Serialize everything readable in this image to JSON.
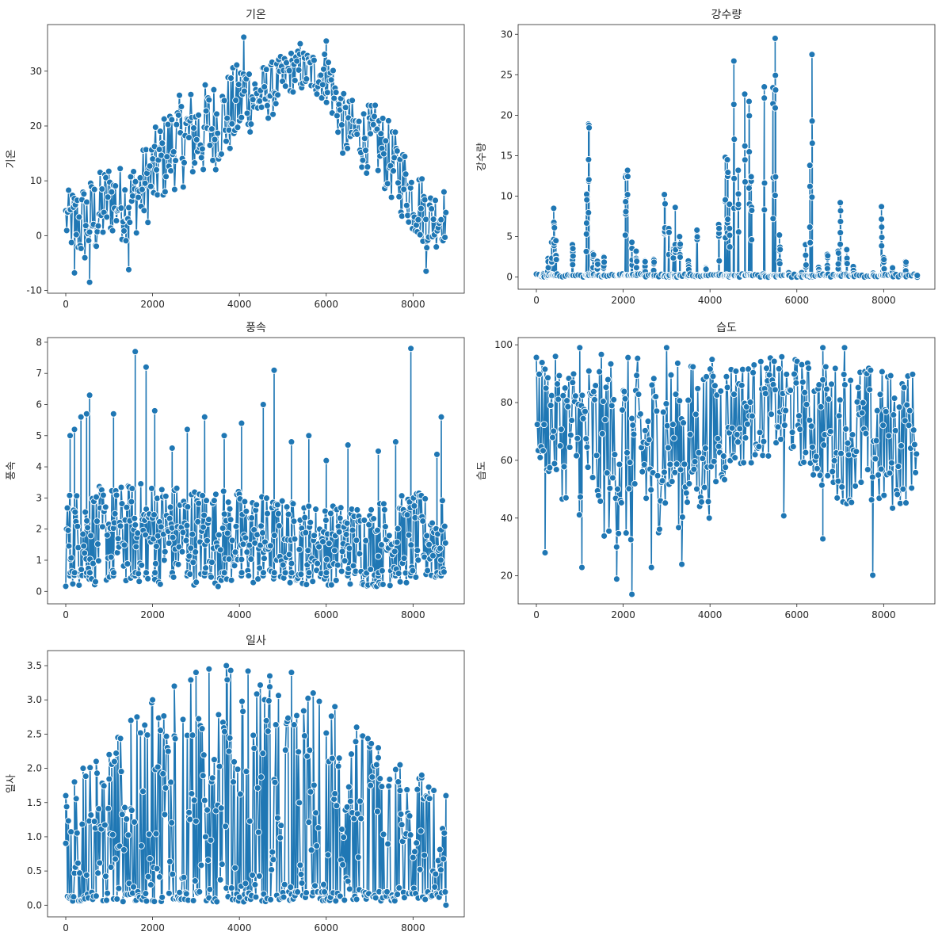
{
  "style": {
    "line_color": "#1f77b4",
    "marker_edge": "#ffffff",
    "axes_color": "#262626",
    "background": "#ffffff"
  },
  "chart_data": [
    {
      "id": "temp",
      "type": "line",
      "title": "기온",
      "xlabel": "",
      "ylabel": "기온",
      "markers": "circle",
      "xlim": [
        -420,
        9180
      ],
      "ylim": [
        -10.5,
        38.5
      ],
      "xticks": [
        0,
        2000,
        4000,
        6000,
        8000
      ],
      "yticks": [
        -10,
        0,
        10,
        20,
        30
      ],
      "ytick_labels": [
        "-10",
        "0",
        "10",
        "20",
        "30"
      ],
      "series": [
        {
          "x": [
            0,
            400,
            800,
            1000,
            1200,
            1400,
            1600,
            2000,
            2400,
            2800,
            3200,
            3600,
            4000,
            4100,
            4400,
            4800,
            5200,
            5600,
            6000,
            6100,
            6400,
            6800,
            7200,
            7600,
            8000,
            8400,
            8759
          ],
          "y": [
            3,
            2,
            4,
            7,
            6,
            6,
            7,
            11,
            16,
            18,
            19,
            21,
            24,
            26,
            25,
            27,
            30,
            30,
            29,
            28,
            20,
            18,
            17,
            12,
            7,
            3,
            4
          ],
          "range": [
            5,
            8,
            8,
            7,
            7,
            7,
            7,
            8,
            8,
            9,
            9,
            8,
            8,
            8,
            6,
            5,
            4,
            4,
            5,
            6,
            6,
            6,
            7,
            7,
            7,
            6,
            5
          ],
          "sample_extremes": [
            [
              200,
              -6.8
            ],
            [
              550,
              -8.5
            ],
            [
              1450,
              -6.2
            ],
            [
              4100,
              36.2
            ],
            [
              5400,
              35
            ],
            [
              6000,
              35.5
            ],
            [
              8300,
              -6.5
            ]
          ]
        }
      ]
    },
    {
      "id": "rain",
      "type": "line",
      "title": "강수량",
      "xlabel": "",
      "ylabel": "강수량",
      "markers": "circle",
      "xlim": [
        -420,
        9180
      ],
      "ylim": [
        -1.5,
        31.2
      ],
      "xticks": [
        0,
        2000,
        4000,
        6000,
        8000
      ],
      "yticks": [
        0,
        5,
        10,
        15,
        20,
        25,
        30
      ],
      "ytick_labels": [
        "0",
        "5",
        "10",
        "15",
        "20",
        "25",
        "30"
      ],
      "series": [
        {
          "baseline": 0,
          "events": [
            [
              150,
              0.5
            ],
            [
              260,
              2.3
            ],
            [
              350,
              4.3
            ],
            [
              400,
              8.5
            ],
            [
              450,
              4.5
            ],
            [
              830,
              4
            ],
            [
              1150,
              10.3
            ],
            [
              1200,
              18.9
            ],
            [
              1300,
              3
            ],
            [
              1400,
              2
            ],
            [
              1550,
              2.5
            ],
            [
              1900,
              0.4
            ],
            [
              2050,
              12.5
            ],
            [
              2100,
              13.2
            ],
            [
              2200,
              4.3
            ],
            [
              2300,
              3.2
            ],
            [
              2500,
              2
            ],
            [
              2700,
              2.2
            ],
            [
              2950,
              10.2
            ],
            [
              3050,
              6
            ],
            [
              3150,
              3.5
            ],
            [
              3200,
              8.6
            ],
            [
              3300,
              5
            ],
            [
              3500,
              2
            ],
            [
              3700,
              5.8
            ],
            [
              3900,
              1.2
            ],
            [
              4200,
              6.5
            ],
            [
              4350,
              14.8
            ],
            [
              4400,
              14.5
            ],
            [
              4450,
              9
            ],
            [
              4550,
              26.7
            ],
            [
              4650,
              13.2
            ],
            [
              4800,
              22.6
            ],
            [
              4900,
              21.7
            ],
            [
              4950,
              12.4
            ],
            [
              5250,
              23.5
            ],
            [
              5450,
              23.4
            ],
            [
              5500,
              29.5
            ],
            [
              5600,
              5.2
            ],
            [
              5800,
              0.6
            ],
            [
              6100,
              0.6
            ],
            [
              6200,
              4
            ],
            [
              6300,
              13.8
            ],
            [
              6350,
              27.5
            ],
            [
              6500,
              1.2
            ],
            [
              6700,
              2.8
            ],
            [
              6950,
              3.2
            ],
            [
              7000,
              9.2
            ],
            [
              7150,
              3.4
            ],
            [
              7300,
              1.3
            ],
            [
              7750,
              0.5
            ],
            [
              7950,
              8.7
            ],
            [
              8000,
              2.4
            ],
            [
              8200,
              1.2
            ],
            [
              8500,
              1.9
            ],
            [
              8759,
              0
            ]
          ]
        }
      ]
    },
    {
      "id": "wind",
      "type": "line",
      "title": "풍속",
      "xlabel": "",
      "ylabel": "풍속",
      "markers": "circle",
      "xlim": [
        -420,
        9180
      ],
      "ylim": [
        -0.4,
        8.15
      ],
      "xticks": [
        0,
        2000,
        4000,
        6000,
        8000
      ],
      "yticks": [
        0,
        1,
        2,
        3,
        4,
        5,
        6,
        7,
        8
      ],
      "ytick_labels": [
        "0",
        "1",
        "2",
        "3",
        "4",
        "5",
        "6",
        "7",
        "8"
      ],
      "series": [
        {
          "x": [
            0,
            1000,
            2000,
            3000,
            4000,
            5000,
            6000,
            7000,
            8000,
            8759
          ],
          "y": [
            1.7,
            1.8,
            1.9,
            1.8,
            1.7,
            1.6,
            1.5,
            1.5,
            1.7,
            1.6
          ],
          "range": [
            1.6,
            1.6,
            1.7,
            1.6,
            1.6,
            1.4,
            1.3,
            1.4,
            1.5,
            1.4
          ],
          "peaks": [
            [
              100,
              5
            ],
            [
              200,
              5.2
            ],
            [
              350,
              5.6
            ],
            [
              480,
              5.7
            ],
            [
              550,
              6.3
            ],
            [
              1100,
              5.7
            ],
            [
              1600,
              7.7
            ],
            [
              1850,
              7.2
            ],
            [
              2050,
              5.8
            ],
            [
              2450,
              4.6
            ],
            [
              2800,
              5.2
            ],
            [
              3200,
              5.6
            ],
            [
              3650,
              5
            ],
            [
              4050,
              5.4
            ],
            [
              4550,
              6
            ],
            [
              4800,
              7.1
            ],
            [
              5200,
              4.8
            ],
            [
              5600,
              5
            ],
            [
              6000,
              4.2
            ],
            [
              6500,
              4.7
            ],
            [
              7200,
              4.5
            ],
            [
              7600,
              4.8
            ],
            [
              7950,
              7.8
            ],
            [
              8550,
              4.4
            ],
            [
              8650,
              5.6
            ]
          ]
        }
      ]
    },
    {
      "id": "humid",
      "type": "line",
      "title": "습도",
      "xlabel": "",
      "ylabel": "습도",
      "markers": "circle",
      "xlim": [
        -420,
        9180
      ],
      "ylim": [
        10.3,
        102.5
      ],
      "xticks": [
        0,
        2000,
        4000,
        6000,
        8000
      ],
      "yticks": [
        20,
        40,
        60,
        80,
        100
      ],
      "ytick_labels": [
        "20",
        "40",
        "60",
        "80",
        "100"
      ],
      "series": [
        {
          "x": [
            0,
            500,
            1000,
            1500,
            2000,
            2500,
            3000,
            3500,
            4000,
            4500,
            5000,
            5500,
            6000,
            6500,
            7000,
            7500,
            8000,
            8500,
            8759
          ],
          "y": [
            78,
            72,
            68,
            65,
            62,
            62,
            66,
            65,
            68,
            76,
            77,
            79,
            78,
            72,
            70,
            68,
            66,
            68,
            72
          ],
          "range": [
            18,
            24,
            28,
            32,
            35,
            33,
            28,
            30,
            28,
            20,
            18,
            17,
            18,
            22,
            24,
            26,
            26,
            24,
            20
          ],
          "sample_extremes": [
            [
              200,
              28
            ],
            [
              1050,
              22.9
            ],
            [
              1850,
              18.9
            ],
            [
              2200,
              13.6
            ],
            [
              2650,
              22.9
            ],
            [
              3350,
              24
            ],
            [
              5700,
              40.8
            ],
            [
              6600,
              32.8
            ],
            [
              7750,
              20.2
            ],
            [
              1000,
              99
            ],
            [
              3000,
              99
            ],
            [
              6600,
              99
            ],
            [
              7100,
              99
            ]
          ]
        }
      ]
    },
    {
      "id": "solar",
      "type": "line",
      "title": "일사",
      "xlabel": "",
      "ylabel": "일사",
      "markers": "circle",
      "xlim": [
        -420,
        9180
      ],
      "ylim": [
        -0.17,
        3.72
      ],
      "xticks": [
        0,
        2000,
        4000,
        6000,
        8000
      ],
      "yticks": [
        0.0,
        0.5,
        1.0,
        1.5,
        2.0,
        2.5,
        3.0,
        3.5
      ],
      "ytick_labels": [
        "0.0",
        "0.5",
        "1.0",
        "1.5",
        "2.0",
        "2.5",
        "3.0",
        "3.5"
      ],
      "series": [
        {
          "baseline": 0.05,
          "envelope_x": [
            0,
            200,
            400,
            700,
            1000,
            1200,
            1500,
            2000,
            2500,
            3000,
            3300,
            3700,
            4200,
            4700,
            5200,
            5700,
            6200,
            6700,
            7200,
            7700,
            8200,
            8759
          ],
          "envelope_y": [
            1.6,
            1.8,
            2.0,
            2.1,
            2.2,
            2.45,
            2.7,
            3.0,
            3.2,
            3.4,
            3.45,
            3.5,
            3.42,
            3.35,
            3.4,
            3.1,
            2.9,
            2.6,
            2.3,
            2.05,
            1.9,
            1.6
          ]
        }
      ]
    }
  ]
}
